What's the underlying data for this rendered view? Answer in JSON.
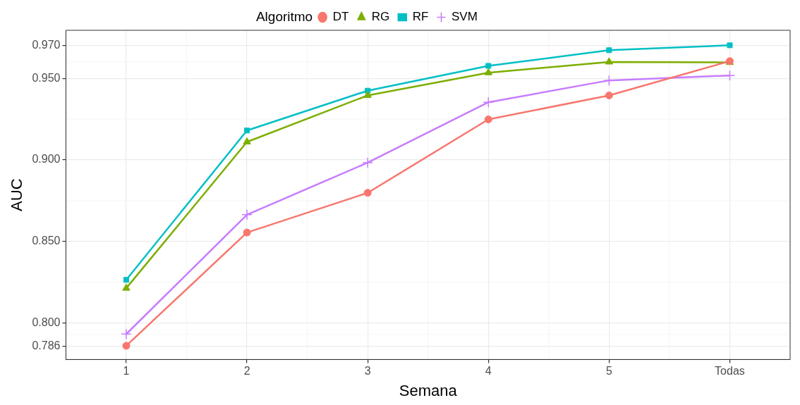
{
  "chart_data": {
    "type": "line",
    "xlabel": "Semana",
    "ylabel": "AUC",
    "legend_title": "Algoritmo",
    "legend": "top",
    "categories": [
      "1",
      "2",
      "3",
      "4",
      "5",
      "Todas"
    ],
    "ylim": [
      0.7777,
      0.9794
    ],
    "yticks": [
      0.786,
      {
        "value": 0.8,
        "label": "0.800"
      },
      {
        "value": 0.85,
        "label": "0.850"
      },
      {
        "value": 0.9,
        "label": "0.900"
      },
      {
        "value": 0.95,
        "label": "0.950"
      },
      {
        "value": 0.97,
        "label": "0.970"
      }
    ],
    "grid": true,
    "line_style": "solid",
    "series": [
      {
        "name": "DT",
        "color": "#f8766d",
        "marker": "circle",
        "values": [
          0.7861,
          0.8555,
          0.8798,
          0.9248,
          0.9395,
          0.9605
        ]
      },
      {
        "name": "RG",
        "color": "#7cae00",
        "marker": "triangle",
        "values": [
          0.8214,
          0.911,
          0.9395,
          0.9534,
          0.96,
          0.9597
        ]
      },
      {
        "name": "RF",
        "color": "#00bfc4",
        "marker": "square",
        "values": [
          0.8265,
          0.918,
          0.9424,
          0.9576,
          0.9672,
          0.9702
        ]
      },
      {
        "name": "SVM",
        "color": "#c77cff",
        "marker": "cross",
        "values": [
          0.7933,
          0.8664,
          0.8983,
          0.9353,
          0.9487,
          0.9517
        ]
      }
    ]
  }
}
